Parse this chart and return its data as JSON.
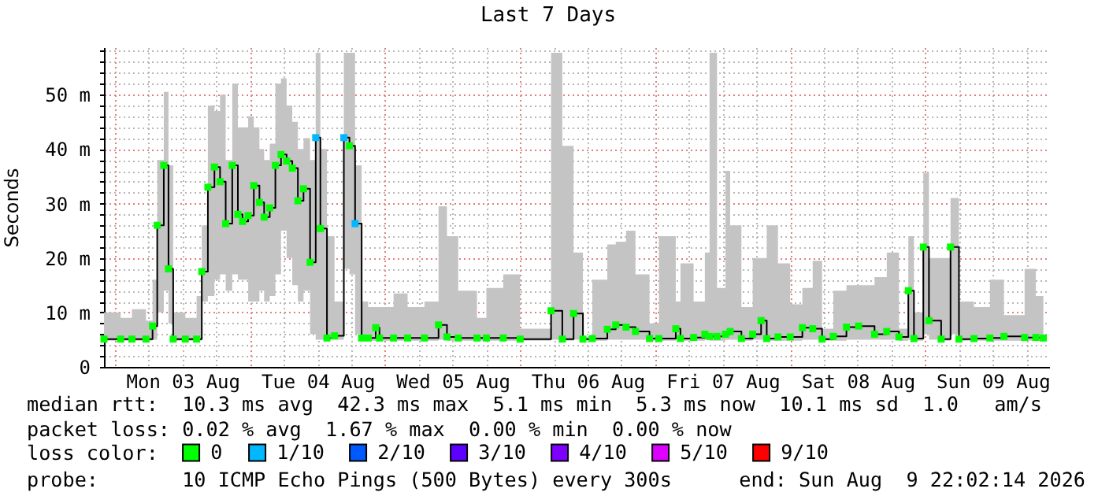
{
  "chart_data": {
    "type": "step",
    "title": "Last 7 Days",
    "ylabel": "Seconds",
    "legend_title": "loss color:",
    "legend": "bottom",
    "grid": true,
    "marker": "square",
    "xlim": [
      "2026-08-02T22:02",
      "2026-08-09T22:02"
    ],
    "ylim": [
      0,
      58.7
    ],
    "xticks": [
      {
        "value": "2026-08-03T00:00",
        "label": null
      },
      {
        "value": "2026-08-03T06:00",
        "label": null
      },
      {
        "value": "2026-08-03T12:00",
        "label": "Mon 03 Aug"
      },
      {
        "value": "2026-08-03T18:00",
        "label": null
      },
      {
        "value": "2026-08-04T00:00",
        "label": null
      },
      {
        "value": "2026-08-04T06:00",
        "label": null
      },
      {
        "value": "2026-08-04T12:00",
        "label": "Tue 04 Aug"
      },
      {
        "value": "2026-08-04T18:00",
        "label": null
      },
      {
        "value": "2026-08-05T00:00",
        "label": null
      },
      {
        "value": "2026-08-05T06:00",
        "label": null
      },
      {
        "value": "2026-08-05T12:00",
        "label": "Wed 05 Aug"
      },
      {
        "value": "2026-08-05T18:00",
        "label": null
      },
      {
        "value": "2026-08-06T00:00",
        "label": null
      },
      {
        "value": "2026-08-06T06:00",
        "label": null
      },
      {
        "value": "2026-08-06T12:00",
        "label": "Thu 06 Aug"
      },
      {
        "value": "2026-08-06T18:00",
        "label": null
      },
      {
        "value": "2026-08-07T00:00",
        "label": null
      },
      {
        "value": "2026-08-07T06:00",
        "label": null
      },
      {
        "value": "2026-08-07T12:00",
        "label": "Fri 07 Aug"
      },
      {
        "value": "2026-08-07T18:00",
        "label": null
      },
      {
        "value": "2026-08-08T00:00",
        "label": null
      },
      {
        "value": "2026-08-08T06:00",
        "label": null
      },
      {
        "value": "2026-08-08T12:00",
        "label": "Sat 08 Aug"
      },
      {
        "value": "2026-08-08T18:00",
        "label": null
      },
      {
        "value": "2026-08-09T00:00",
        "label": null
      },
      {
        "value": "2026-08-09T06:00",
        "label": null
      },
      {
        "value": "2026-08-09T12:00",
        "label": "Sun 09 Aug"
      },
      {
        "value": "2026-08-09T18:00",
        "label": null
      }
    ],
    "yticks": [
      0,
      {
        "value": 2,
        "label": null
      },
      {
        "value": 4,
        "label": null
      },
      {
        "value": 6,
        "label": null
      },
      {
        "value": 8,
        "label": null
      },
      {
        "value": 10,
        "label": "10 m"
      },
      {
        "value": 12,
        "label": null
      },
      {
        "value": 14,
        "label": null
      },
      {
        "value": 16,
        "label": null
      },
      {
        "value": 18,
        "label": null
      },
      {
        "value": 20,
        "label": "20 m"
      },
      {
        "value": 22,
        "label": null
      },
      {
        "value": 24,
        "label": null
      },
      {
        "value": 26,
        "label": null
      },
      {
        "value": 28,
        "label": null
      },
      {
        "value": 30,
        "label": "30 m"
      },
      {
        "value": 32,
        "label": null
      },
      {
        "value": 34,
        "label": null
      },
      {
        "value": 36,
        "label": null
      },
      {
        "value": 38,
        "label": null
      },
      {
        "value": 40,
        "label": "40 m"
      },
      {
        "value": 42,
        "label": null
      },
      {
        "value": 44,
        "label": null
      },
      {
        "value": 46,
        "label": null
      },
      {
        "value": 48,
        "label": null
      },
      {
        "value": 50,
        "label": "50 m"
      },
      {
        "value": 52,
        "label": null
      },
      {
        "value": 54,
        "label": null
      },
      {
        "value": 56,
        "label": null
      },
      {
        "value": 58,
        "label": null
      }
    ],
    "x": [
      "2026-08-02T22:02",
      "2026-08-03T01:00",
      "2026-08-03T03:00",
      "2026-08-03T05:30",
      "2026-08-03T06:40",
      "2026-08-03T07:30",
      "2026-08-03T08:40",
      "2026-08-03T09:30",
      "2026-08-03T10:20",
      "2026-08-03T12:30",
      "2026-08-03T14:30",
      "2026-08-03T15:25",
      "2026-08-03T16:30",
      "2026-08-03T17:40",
      "2026-08-03T18:40",
      "2026-08-03T19:40",
      "2026-08-03T20:50",
      "2026-08-03T21:50",
      "2026-08-03T22:40",
      "2026-08-03T23:40",
      "2026-08-04T00:40",
      "2026-08-04T01:40",
      "2026-08-04T02:30",
      "2026-08-04T03:30",
      "2026-08-04T04:30",
      "2026-08-04T05:30",
      "2026-08-04T06:30",
      "2026-08-04T07:30",
      "2026-08-04T08:30",
      "2026-08-04T09:30",
      "2026-08-04T10:40",
      "2026-08-04T11:40",
      "2026-08-04T12:30",
      "2026-08-04T13:40",
      "2026-08-04T15:00",
      "2026-08-04T16:40",
      "2026-08-04T17:40",
      "2026-08-04T18:40",
      "2026-08-04T19:50",
      "2026-08-04T21:00",
      "2026-08-04T22:20",
      "2026-08-04T23:00",
      "2026-08-05T01:30",
      "2026-08-05T04:00",
      "2026-08-05T07:00",
      "2026-08-05T09:30",
      "2026-08-05T11:00",
      "2026-08-05T13:00",
      "2026-08-05T16:20",
      "2026-08-05T18:00",
      "2026-08-05T21:00",
      "2026-08-06T00:00",
      "2026-08-06T05:30",
      "2026-08-06T07:30",
      "2026-08-06T09:30",
      "2026-08-06T11:10",
      "2026-08-06T12:50",
      "2026-08-06T15:30",
      "2026-08-06T17:00",
      "2026-08-06T18:50",
      "2026-08-06T20:30",
      "2026-08-06T23:00",
      "2026-08-07T00:40",
      "2026-08-07T03:40",
      "2026-08-07T04:30",
      "2026-08-07T06:50",
      "2026-08-07T08:50",
      "2026-08-07T09:40",
      "2026-08-07T11:00",
      "2026-08-07T12:30",
      "2026-08-07T13:20",
      "2026-08-07T15:20",
      "2026-08-07T17:20",
      "2026-08-07T18:50",
      "2026-08-07T19:50",
      "2026-08-07T21:50",
      "2026-08-08T00:00",
      "2026-08-08T02:10",
      "2026-08-08T04:00",
      "2026-08-08T05:40",
      "2026-08-08T07:40",
      "2026-08-08T10:00",
      "2026-08-08T12:10",
      "2026-08-08T15:00",
      "2026-08-08T17:10",
      "2026-08-08T19:20",
      "2026-08-08T21:00",
      "2026-08-08T22:00",
      "2026-08-08T23:40",
      "2026-08-09T00:40",
      "2026-08-09T02:50",
      "2026-08-09T04:30",
      "2026-08-09T06:00",
      "2026-08-09T08:40",
      "2026-08-09T11:30",
      "2026-08-09T14:00",
      "2026-08-09T17:40",
      "2026-08-09T19:40",
      "2026-08-09T21:00"
    ],
    "series": [
      {
        "color": "#000000",
        "marker": "none",
        "values": [
          5.1,
          5.1,
          5.1,
          5.1,
          7.5,
          26,
          37,
          18,
          5.1,
          5.1,
          5.1,
          17.5,
          33,
          36.7,
          34,
          26.3,
          37,
          28,
          26.7,
          27.8,
          33.3,
          30.2,
          27.5,
          29.2,
          37,
          39,
          37.8,
          36.5,
          30.5,
          32.7,
          19.2,
          42.1,
          25.4,
          5.3,
          5.7,
          42.1,
          40.6,
          26.3,
          5.3,
          5.3,
          7.2,
          5.3,
          5.3,
          5.3,
          5.3,
          7.7,
          5.5,
          5.3,
          5.3,
          5.3,
          5.3,
          5.1,
          10.3,
          5.1,
          9.8,
          5.1,
          5.2,
          6.9,
          7.7,
          7.3,
          6.5,
          5.2,
          5.2,
          7,
          5.2,
          5.4,
          6,
          5.6,
          5.6,
          6,
          6.5,
          5.2,
          6,
          8.5,
          5.2,
          5.5,
          5.5,
          7.2,
          7,
          5.1,
          5.6,
          7.3,
          7.5,
          6,
          6.5,
          5.5,
          14,
          5.2,
          22,
          8.5,
          5.1,
          22,
          5.1,
          5.2,
          5.3,
          5.6,
          5.4,
          5.4,
          5.3
        ],
        "lower": [
          4.8,
          4.8,
          4.8,
          4.8,
          5,
          10,
          14,
          8,
          4.8,
          4.8,
          4.8,
          12,
          13,
          16,
          17,
          14,
          17,
          16,
          16,
          12,
          12,
          14,
          12,
          13,
          17,
          25,
          20,
          15,
          12,
          14,
          6,
          5,
          5,
          5,
          5,
          18,
          17,
          6,
          4.8,
          4.8,
          5,
          4.8,
          4.8,
          4.8,
          4.8,
          5,
          4.8,
          4.8,
          4.8,
          4.8,
          4.8,
          4.8,
          5,
          4.8,
          5,
          4.8,
          4.8,
          5,
          5,
          5,
          5,
          4.8,
          4.8,
          5,
          4.8,
          4.8,
          5,
          4.8,
          4.8,
          5,
          5,
          4.8,
          5,
          5,
          4.8,
          4.8,
          4.8,
          5,
          5,
          4.8,
          4.8,
          5,
          5,
          5,
          5,
          4.8,
          5,
          4.8,
          6,
          5,
          4.8,
          6,
          4.8,
          4.8,
          4.8,
          4.8,
          4.8,
          4.8,
          4.8
        ],
        "upper": [
          10,
          9,
          10.6,
          8.5,
          16,
          38,
          50.5,
          37,
          10,
          9,
          13,
          26,
          48,
          47,
          50,
          38,
          52,
          44,
          44,
          46,
          44,
          40,
          38,
          41,
          52,
          53,
          48,
          45,
          40,
          42,
          38,
          57.7,
          40,
          24,
          12,
          57.7,
          57.7,
          37,
          12,
          11,
          11,
          11,
          13.5,
          11,
          12,
          29.5,
          24,
          14,
          9,
          14.5,
          17,
          7,
          57.7,
          40.6,
          21,
          5.5,
          16,
          22.5,
          23,
          25,
          17,
          8,
          24,
          12,
          19,
          12,
          21,
          57.7,
          14.5,
          36,
          26,
          11,
          20,
          20,
          26,
          19,
          11.5,
          14.5,
          19.5,
          7,
          14,
          15,
          15,
          16.5,
          21,
          7,
          24,
          10,
          35.6,
          20,
          20,
          31,
          12,
          11,
          16,
          9.5,
          18,
          13,
          10
        ]
      },
      {
        "type": "scatter",
        "name": "0",
        "color": "#00ff00",
        "values": [
          5.1,
          5.1,
          5.1,
          5.1,
          7.5,
          26,
          37,
          18,
          5.1,
          5.1,
          5.1,
          17.5,
          33,
          36.7,
          34,
          26.3,
          37,
          28,
          26.7,
          27.8,
          33.3,
          30.2,
          27.5,
          29.2,
          37,
          39,
          37.8,
          36.5,
          30.5,
          32.7,
          19.2,
          null,
          25.4,
          5.3,
          5.7,
          null,
          40.6,
          null,
          5.3,
          5.3,
          7.2,
          5.3,
          5.3,
          5.3,
          5.3,
          7.7,
          5.5,
          5.3,
          5.3,
          5.3,
          5.3,
          5.1,
          10.3,
          5.1,
          9.8,
          5.1,
          5.2,
          6.9,
          7.7,
          7.3,
          6.5,
          5.2,
          5.2,
          7,
          5.2,
          5.4,
          6,
          5.6,
          5.6,
          6,
          6.5,
          5.2,
          6,
          8.5,
          5.2,
          5.5,
          5.5,
          7.2,
          7,
          5.1,
          5.6,
          7.3,
          7.5,
          6,
          6.5,
          5.5,
          14,
          5.2,
          22,
          8.5,
          5.1,
          22,
          5.1,
          5.2,
          5.3,
          5.6,
          5.4,
          5.4,
          5.3
        ]
      },
      {
        "type": "scatter",
        "name": "1/10",
        "color": "#00b8ff",
        "x": [
          "2026-08-04T11:40",
          "2026-08-04T16:40",
          "2026-08-04T18:40"
        ],
        "values": [
          42.1,
          42.1,
          26.3
        ]
      },
      {
        "type": "scatter",
        "name": "2/10",
        "color": "#0059ff",
        "values": [
          null,
          null,
          null,
          null,
          null,
          null,
          null,
          null,
          null,
          null,
          null,
          null,
          null,
          null,
          null,
          null,
          null,
          null,
          null,
          null,
          null,
          null,
          null,
          null,
          null,
          null,
          null,
          null,
          null,
          null,
          null,
          null,
          null,
          null,
          null,
          null,
          null,
          null,
          null,
          null,
          null,
          null,
          null,
          null,
          null,
          null,
          null,
          null,
          null,
          null,
          null,
          null,
          null,
          null,
          null,
          null,
          null,
          null,
          null,
          null,
          null,
          null,
          null,
          null,
          null,
          null,
          null,
          null,
          null,
          null,
          null,
          null,
          null,
          null,
          null,
          null,
          null,
          null,
          null,
          null,
          null,
          null,
          null,
          null,
          null,
          null,
          null,
          null,
          null,
          null,
          null,
          null,
          null,
          null,
          null,
          null,
          null,
          null,
          null
        ]
      },
      {
        "type": "scatter",
        "name": "3/10",
        "color": "#5e00ff",
        "values": [
          null,
          null,
          null,
          null,
          null,
          null,
          null,
          null,
          null,
          null,
          null,
          null,
          null,
          null,
          null,
          null,
          null,
          null,
          null,
          null,
          null,
          null,
          null,
          null,
          null,
          null,
          null,
          null,
          null,
          null,
          null,
          null,
          null,
          null,
          null,
          null,
          null,
          null,
          null,
          null,
          null,
          null,
          null,
          null,
          null,
          null,
          null,
          null,
          null,
          null,
          null,
          null,
          null,
          null,
          null,
          null,
          null,
          null,
          null,
          null,
          null,
          null,
          null,
          null,
          null,
          null,
          null,
          null,
          null,
          null,
          null,
          null,
          null,
          null,
          null,
          null,
          null,
          null,
          null,
          null,
          null,
          null,
          null,
          null,
          null,
          null,
          null,
          null,
          null,
          null,
          null,
          null,
          null,
          null,
          null,
          null,
          null,
          null,
          null
        ]
      },
      {
        "type": "scatter",
        "name": "4/10",
        "color": "#7e00ff",
        "values": [
          null,
          null,
          null,
          null,
          null,
          null,
          null,
          null,
          null,
          null,
          null,
          null,
          null,
          null,
          null,
          null,
          null,
          null,
          null,
          null,
          null,
          null,
          null,
          null,
          null,
          null,
          null,
          null,
          null,
          null,
          null,
          null,
          null,
          null,
          null,
          null,
          null,
          null,
          null,
          null,
          null,
          null,
          null,
          null,
          null,
          null,
          null,
          null,
          null,
          null,
          null,
          null,
          null,
          null,
          null,
          null,
          null,
          null,
          null,
          null,
          null,
          null,
          null,
          null,
          null,
          null,
          null,
          null,
          null,
          null,
          null,
          null,
          null,
          null,
          null,
          null,
          null,
          null,
          null,
          null,
          null,
          null,
          null,
          null,
          null,
          null,
          null,
          null,
          null,
          null,
          null,
          null,
          null,
          null,
          null,
          null,
          null,
          null,
          null
        ]
      },
      {
        "type": "scatter",
        "name": "5/10",
        "color": "#dd00ff",
        "values": [
          null,
          null,
          null,
          null,
          null,
          null,
          null,
          null,
          null,
          null,
          null,
          null,
          null,
          null,
          null,
          null,
          null,
          null,
          null,
          null,
          null,
          null,
          null,
          null,
          null,
          null,
          null,
          null,
          null,
          null,
          null,
          null,
          null,
          null,
          null,
          null,
          null,
          null,
          null,
          null,
          null,
          null,
          null,
          null,
          null,
          null,
          null,
          null,
          null,
          null,
          null,
          null,
          null,
          null,
          null,
          null,
          null,
          null,
          null,
          null,
          null,
          null,
          null,
          null,
          null,
          null,
          null,
          null,
          null,
          null,
          null,
          null,
          null,
          null,
          null,
          null,
          null,
          null,
          null,
          null,
          null,
          null,
          null,
          null,
          null,
          null,
          null,
          null,
          null,
          null,
          null,
          null,
          null,
          null,
          null,
          null,
          null,
          null,
          null
        ]
      },
      {
        "type": "scatter",
        "name": "9/10",
        "color": "#ff0000",
        "values": [
          null,
          null,
          null,
          null,
          null,
          null,
          null,
          null,
          null,
          null,
          null,
          null,
          null,
          null,
          null,
          null,
          null,
          null,
          null,
          null,
          null,
          null,
          null,
          null,
          null,
          null,
          null,
          null,
          null,
          null,
          null,
          null,
          null,
          null,
          null,
          null,
          null,
          null,
          null,
          null,
          null,
          null,
          null,
          null,
          null,
          null,
          null,
          null,
          null,
          null,
          null,
          null,
          null,
          null,
          null,
          null,
          null,
          null,
          null,
          null,
          null,
          null,
          null,
          null,
          null,
          null,
          null,
          null,
          null,
          null,
          null,
          null,
          null,
          null,
          null,
          null,
          null,
          null,
          null,
          null,
          null,
          null,
          null,
          null,
          null,
          null,
          null,
          null,
          null,
          null,
          null,
          null,
          null,
          null,
          null,
          null,
          null,
          null,
          null
        ]
      }
    ],
    "annotations": [
      "median rtt:  10.3 ms avg  42.3 ms max  5.1 ms min  5.3 ms now  10.1 ms sd  1.0   am/s",
      "packet loss: 0.02 % avg  1.67 % max  0.00 % min  0.00 % now",
      "probe:       10 ICMP Echo Pings (500 Bytes) every 300s",
      "end: Sun Aug  9 22:02:14 2026"
    ]
  }
}
